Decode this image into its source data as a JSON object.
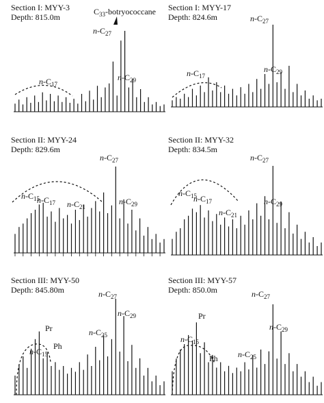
{
  "chart_data": [
    {
      "type": "bar",
      "title_line1": "Section I: MYY-3",
      "title_line2": "Depth: 815.0m",
      "annotations": [
        {
          "text": "C33-botryococcane",
          "arrow": true
        },
        {
          "text": "n-C27"
        },
        {
          "text": "n-C29"
        },
        {
          "text": "n-C17"
        }
      ],
      "hump": true,
      "peaks": [
        0.1,
        0.15,
        0.09,
        0.18,
        0.11,
        0.2,
        0.12,
        0.24,
        0.14,
        0.22,
        0.13,
        0.2,
        0.12,
        0.18,
        0.11,
        0.16,
        0.1,
        0.22,
        0.13,
        0.26,
        0.15,
        0.32,
        0.18,
        0.3,
        0.35,
        0.62,
        0.2,
        0.88,
        1.0,
        0.3,
        0.4,
        0.18,
        0.28,
        0.12,
        0.18,
        0.09,
        0.12,
        0.07,
        0.09
      ]
    },
    {
      "type": "bar",
      "title_line1": "Section I: MYY-17",
      "title_line2": "Depth: 824.6m",
      "annotations": [
        {
          "text": "n-C27"
        },
        {
          "text": "n-C29"
        },
        {
          "text": "n-C17"
        }
      ],
      "hump": true,
      "peaks": [
        0.08,
        0.12,
        0.1,
        0.16,
        0.12,
        0.22,
        0.14,
        0.26,
        0.18,
        0.36,
        0.2,
        0.3,
        0.18,
        0.26,
        0.16,
        0.22,
        0.14,
        0.24,
        0.16,
        0.28,
        0.18,
        0.34,
        0.22,
        0.4,
        0.28,
        1.0,
        0.3,
        0.42,
        0.22,
        0.5,
        0.18,
        0.28,
        0.14,
        0.2,
        0.1,
        0.14,
        0.08,
        0.1
      ]
    },
    {
      "type": "bar",
      "title_line1": "Section II: MYY-24",
      "title_line2": "Depth: 829.6m",
      "annotations": [
        {
          "text": "n-C27"
        },
        {
          "text": "n-C29"
        },
        {
          "text": "n-C15"
        },
        {
          "text": "n-C17"
        },
        {
          "text": "n-C21"
        }
      ],
      "hump": true,
      "peaks": [
        0.22,
        0.3,
        0.34,
        0.4,
        0.46,
        0.5,
        0.56,
        0.58,
        0.42,
        0.48,
        0.36,
        0.52,
        0.4,
        0.44,
        0.34,
        0.5,
        0.38,
        0.56,
        0.42,
        0.52,
        0.6,
        0.48,
        0.7,
        0.46,
        0.55,
        1.0,
        0.4,
        0.62,
        0.34,
        0.5,
        0.26,
        0.4,
        0.2,
        0.3,
        0.16,
        0.22,
        0.12,
        0.16
      ]
    },
    {
      "type": "bar",
      "title_line1": "Section II: MYY-32",
      "title_line2": "Depth: 834.5m",
      "annotations": [
        {
          "text": "n-C27"
        },
        {
          "text": "n-C29"
        },
        {
          "text": "n-C15"
        },
        {
          "text": "n-C17"
        },
        {
          "text": "n-C21"
        }
      ],
      "hump": true,
      "peaks": [
        0.18,
        0.26,
        0.3,
        0.4,
        0.44,
        0.52,
        0.48,
        0.56,
        0.42,
        0.5,
        0.38,
        0.46,
        0.34,
        0.42,
        0.32,
        0.4,
        0.3,
        0.44,
        0.34,
        0.5,
        0.4,
        0.58,
        0.44,
        0.66,
        0.4,
        1.0,
        0.36,
        0.6,
        0.3,
        0.48,
        0.24,
        0.34,
        0.18,
        0.26,
        0.14,
        0.2,
        0.1,
        0.14
      ]
    },
    {
      "type": "bar",
      "title_line1": "Section III: MYY-50",
      "title_line2": "Depth: 845.80m",
      "annotations": [
        {
          "text": "n-C27"
        },
        {
          "text": "n-C29"
        },
        {
          "text": "n-C25"
        },
        {
          "text": "Pr"
        },
        {
          "text": "Ph"
        },
        {
          "text": "n-C15"
        }
      ],
      "hump": true,
      "peaks": [
        0.2,
        0.32,
        0.4,
        0.28,
        0.48,
        0.58,
        0.66,
        0.38,
        0.44,
        0.3,
        0.34,
        0.26,
        0.3,
        0.22,
        0.28,
        0.24,
        0.34,
        0.26,
        0.42,
        0.3,
        0.5,
        0.36,
        0.62,
        0.4,
        0.58,
        1.0,
        0.45,
        0.82,
        0.35,
        0.52,
        0.28,
        0.38,
        0.2,
        0.28,
        0.14,
        0.2,
        0.1,
        0.14
      ]
    },
    {
      "type": "bar",
      "title_line1": "Section III: MYY-57",
      "title_line2": "Depth: 850.0m",
      "annotations": [
        {
          "text": "n-C27"
        },
        {
          "text": "n-C29"
        },
        {
          "text": "n-C25"
        },
        {
          "text": "Pr"
        },
        {
          "text": "Ph"
        },
        {
          "text": "n-C15"
        }
      ],
      "hump": true,
      "peaks": [
        0.26,
        0.4,
        0.5,
        0.56,
        0.66,
        0.6,
        0.8,
        0.46,
        0.58,
        0.36,
        0.44,
        0.3,
        0.36,
        0.26,
        0.32,
        0.24,
        0.3,
        0.26,
        0.36,
        0.28,
        0.44,
        0.3,
        0.5,
        0.34,
        0.48,
        1.0,
        0.4,
        0.7,
        0.34,
        0.46,
        0.26,
        0.34,
        0.2,
        0.26,
        0.14,
        0.2,
        0.1,
        0.14
      ]
    }
  ]
}
